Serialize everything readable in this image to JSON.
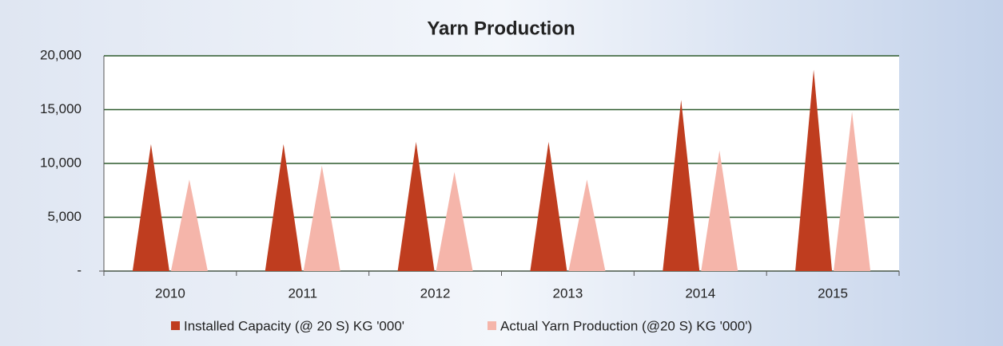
{
  "chart_data": {
    "type": "bar",
    "title": "Yarn Production",
    "categories": [
      "2010",
      "2011",
      "2012",
      "2013",
      "2014",
      "2015"
    ],
    "series": [
      {
        "name": "Installed Capacity (@ 20 S) KG '000'",
        "color": "#bf3d1f",
        "values": [
          11800,
          11800,
          12000,
          12000,
          15900,
          18700
        ]
      },
      {
        "name": "Actual Yarn Production (@20 S) KG '000')",
        "color": "#f5b5aa",
        "values": [
          8500,
          9800,
          9200,
          8500,
          11200,
          14800
        ]
      }
    ],
    "ylim": [
      0,
      20000
    ],
    "yticks": [
      {
        "value": 0,
        "label": "-"
      },
      {
        "value": 5000,
        "label": "5,000"
      },
      {
        "value": 10000,
        "label": "10,000"
      },
      {
        "value": 15000,
        "label": "15,000"
      },
      {
        "value": 20000,
        "label": "20,000"
      }
    ],
    "grid": true,
    "legend": "bottom"
  }
}
